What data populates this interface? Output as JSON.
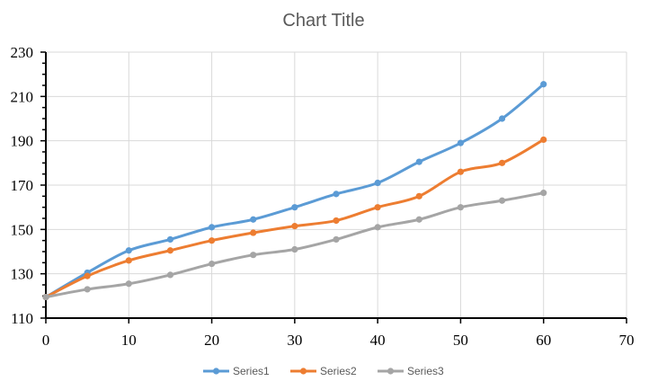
{
  "chart_data": {
    "type": "line",
    "title": "Chart Title",
    "xlabel": "",
    "ylabel": "",
    "xlim": [
      0,
      70
    ],
    "ylim": [
      110,
      230
    ],
    "x_ticks": [
      0,
      10,
      20,
      30,
      40,
      50,
      60,
      70
    ],
    "y_ticks": [
      110,
      130,
      150,
      170,
      190,
      210,
      230
    ],
    "grid": true,
    "smooth": true,
    "legend_position": "bottom",
    "x": [
      0,
      5,
      10,
      15,
      20,
      25,
      30,
      35,
      40,
      45,
      50,
      55,
      60
    ],
    "series": [
      {
        "name": "Series1",
        "color": "#5b9bd5",
        "values": [
          119.5,
          130.5,
          140.5,
          145.5,
          151,
          154.5,
          160,
          166,
          171,
          180.5,
          189,
          200,
          215.5
        ]
      },
      {
        "name": "Series2",
        "color": "#ed7d31",
        "values": [
          119.5,
          129,
          136,
          140.5,
          145,
          148.5,
          151.5,
          154,
          160,
          165,
          176,
          180,
          190.5
        ]
      },
      {
        "name": "Series3",
        "color": "#a5a5a5",
        "values": [
          119.5,
          123,
          125.5,
          129.5,
          134.5,
          138.5,
          141,
          145.5,
          151,
          154.5,
          160,
          163,
          166.5
        ]
      }
    ]
  }
}
